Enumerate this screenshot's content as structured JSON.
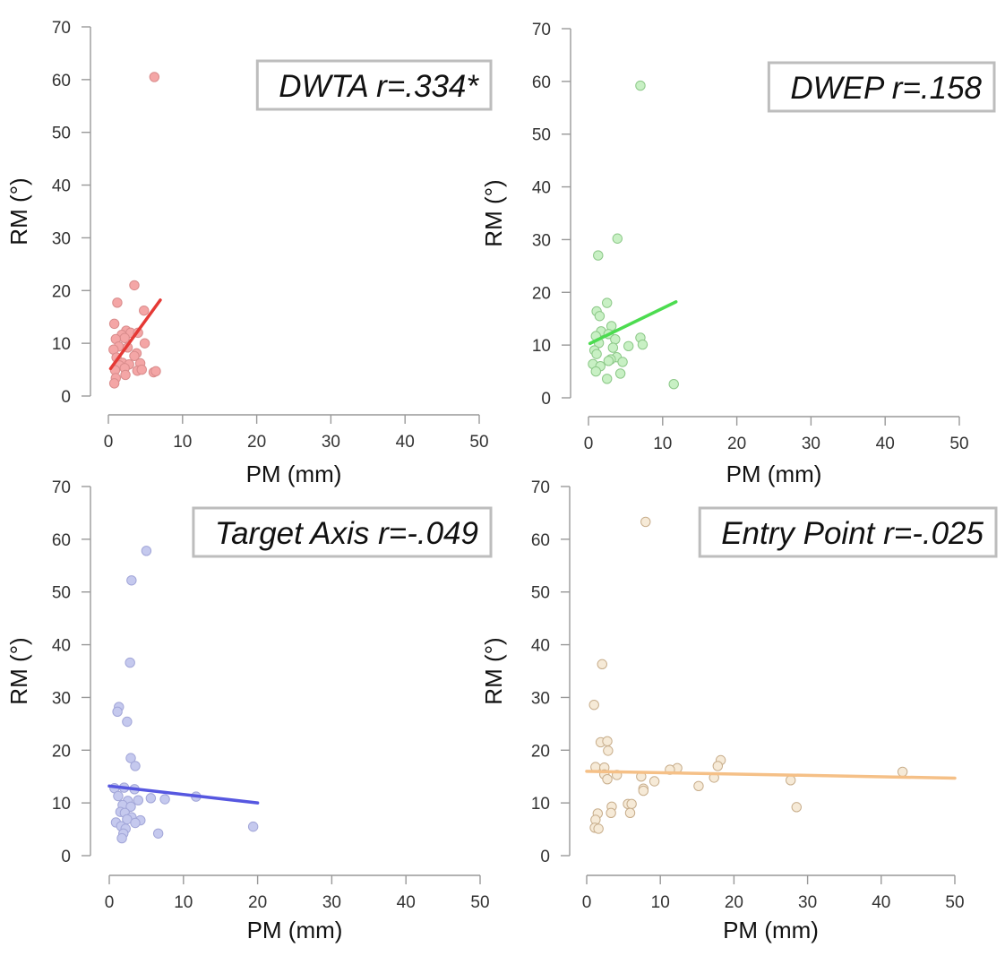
{
  "chart_data": [
    {
      "type": "scatter",
      "title": "",
      "xlabel": "PM (mm)",
      "ylabel": "RM (°)",
      "xlim": [
        0,
        50
      ],
      "ylim": [
        0,
        70
      ],
      "xticks": [
        "0",
        "10",
        "20",
        "30",
        "40",
        "50"
      ],
      "yticks": [
        "0",
        "10",
        "20",
        "30",
        "40",
        "50",
        "60",
        "70"
      ],
      "legend": "DWTA r=.334*",
      "legend_position": "top-right",
      "point_color": "#f4a6a6",
      "point_edge_color": "#d98c8c",
      "line_color": "#e53935",
      "points": [
        {
          "x": 6.2,
          "y": 60.5
        },
        {
          "x": 3.5,
          "y": 21.0
        },
        {
          "x": 1.2,
          "y": 17.7
        },
        {
          "x": 4.8,
          "y": 16.2
        },
        {
          "x": 0.8,
          "y": 13.7
        },
        {
          "x": 2.4,
          "y": 12.4
        },
        {
          "x": 3.0,
          "y": 12.0
        },
        {
          "x": 4.0,
          "y": 12.0
        },
        {
          "x": 1.8,
          "y": 11.6
        },
        {
          "x": 2.2,
          "y": 11.0
        },
        {
          "x": 1.0,
          "y": 10.8
        },
        {
          "x": 4.9,
          "y": 10.0
        },
        {
          "x": 1.4,
          "y": 9.4
        },
        {
          "x": 2.6,
          "y": 9.2
        },
        {
          "x": 0.7,
          "y": 8.8
        },
        {
          "x": 3.8,
          "y": 8.1
        },
        {
          "x": 3.5,
          "y": 7.6
        },
        {
          "x": 1.1,
          "y": 7.3
        },
        {
          "x": 1.9,
          "y": 6.3
        },
        {
          "x": 2.8,
          "y": 6.0
        },
        {
          "x": 4.3,
          "y": 6.2
        },
        {
          "x": 1.5,
          "y": 5.8
        },
        {
          "x": 2.2,
          "y": 5.3
        },
        {
          "x": 0.9,
          "y": 4.9
        },
        {
          "x": 3.9,
          "y": 4.8
        },
        {
          "x": 4.5,
          "y": 5.0
        },
        {
          "x": 6.1,
          "y": 4.5
        },
        {
          "x": 6.4,
          "y": 4.7
        },
        {
          "x": 2.3,
          "y": 4.0
        },
        {
          "x": 1.0,
          "y": 3.4
        },
        {
          "x": 0.8,
          "y": 2.4
        }
      ],
      "trend": {
        "x": [
          0.3,
          7.0
        ],
        "y": [
          5.2,
          18.2
        ]
      }
    },
    {
      "type": "scatter",
      "title": "",
      "xlabel": "PM (mm)",
      "ylabel": "RM (°)",
      "xlim": [
        0,
        50
      ],
      "ylim": [
        0,
        70
      ],
      "xticks": [
        "0",
        "10",
        "20",
        "30",
        "40",
        "50"
      ],
      "yticks": [
        "0",
        "10",
        "20",
        "30",
        "40",
        "50",
        "60",
        "70"
      ],
      "legend": "DWEP r=.158",
      "legend_position": "top-right",
      "point_color": "#c8f0c4",
      "point_edge_color": "#8cc888",
      "line_color": "#4cdc50",
      "points": [
        {
          "x": 7.0,
          "y": 59.2
        },
        {
          "x": 3.9,
          "y": 30.2
        },
        {
          "x": 1.3,
          "y": 27.0
        },
        {
          "x": 2.5,
          "y": 18.0
        },
        {
          "x": 1.1,
          "y": 16.4
        },
        {
          "x": 1.5,
          "y": 15.5
        },
        {
          "x": 3.1,
          "y": 13.6
        },
        {
          "x": 1.7,
          "y": 12.6
        },
        {
          "x": 2.7,
          "y": 12.1
        },
        {
          "x": 1.0,
          "y": 11.7
        },
        {
          "x": 7.0,
          "y": 11.4
        },
        {
          "x": 3.6,
          "y": 11.1
        },
        {
          "x": 1.4,
          "y": 10.4
        },
        {
          "x": 7.3,
          "y": 10.1
        },
        {
          "x": 5.4,
          "y": 9.8
        },
        {
          "x": 3.3,
          "y": 9.5
        },
        {
          "x": 0.8,
          "y": 9.0
        },
        {
          "x": 1.1,
          "y": 8.3
        },
        {
          "x": 3.8,
          "y": 7.7
        },
        {
          "x": 3.0,
          "y": 7.3
        },
        {
          "x": 2.7,
          "y": 7.0
        },
        {
          "x": 4.6,
          "y": 6.8
        },
        {
          "x": 0.6,
          "y": 6.4
        },
        {
          "x": 1.6,
          "y": 6.0
        },
        {
          "x": 1.0,
          "y": 5.0
        },
        {
          "x": 4.3,
          "y": 4.6
        },
        {
          "x": 2.5,
          "y": 3.6
        },
        {
          "x": 11.5,
          "y": 2.6
        }
      ],
      "trend": {
        "x": [
          0.2,
          11.8
        ],
        "y": [
          10.3,
          18.2
        ]
      }
    },
    {
      "type": "scatter",
      "title": "",
      "xlabel": "PM (mm)",
      "ylabel": "RM (°)",
      "xlim": [
        0,
        50
      ],
      "ylim": [
        0,
        70
      ],
      "xticks": [
        "0",
        "10",
        "20",
        "30",
        "40",
        "50"
      ],
      "yticks": [
        "0",
        "10",
        "20",
        "30",
        "40",
        "50",
        "60",
        "70"
      ],
      "legend": "Target Axis r=-.049",
      "legend_position": "top-right",
      "point_color": "#c5c9ee",
      "point_edge_color": "#a2a6d8",
      "line_color": "#5657e0",
      "points": [
        {
          "x": 5.0,
          "y": 57.8
        },
        {
          "x": 3.0,
          "y": 52.2
        },
        {
          "x": 2.8,
          "y": 36.6
        },
        {
          "x": 1.3,
          "y": 28.2
        },
        {
          "x": 1.1,
          "y": 27.3
        },
        {
          "x": 2.4,
          "y": 25.4
        },
        {
          "x": 2.9,
          "y": 18.5
        },
        {
          "x": 3.5,
          "y": 17.0
        },
        {
          "x": 0.7,
          "y": 12.8
        },
        {
          "x": 2.0,
          "y": 12.9
        },
        {
          "x": 3.4,
          "y": 12.6
        },
        {
          "x": 1.2,
          "y": 11.3
        },
        {
          "x": 11.7,
          "y": 11.2
        },
        {
          "x": 5.6,
          "y": 10.9
        },
        {
          "x": 7.5,
          "y": 10.7
        },
        {
          "x": 2.5,
          "y": 10.4
        },
        {
          "x": 3.9,
          "y": 10.5
        },
        {
          "x": 1.8,
          "y": 9.6
        },
        {
          "x": 2.9,
          "y": 9.3
        },
        {
          "x": 1.5,
          "y": 8.3
        },
        {
          "x": 2.1,
          "y": 8.1
        },
        {
          "x": 3.0,
          "y": 7.3
        },
        {
          "x": 2.4,
          "y": 6.9
        },
        {
          "x": 4.2,
          "y": 6.7
        },
        {
          "x": 0.9,
          "y": 6.3
        },
        {
          "x": 3.5,
          "y": 6.2
        },
        {
          "x": 1.6,
          "y": 5.6
        },
        {
          "x": 2.2,
          "y": 5.1
        },
        {
          "x": 19.4,
          "y": 5.5
        },
        {
          "x": 6.6,
          "y": 4.2
        },
        {
          "x": 1.9,
          "y": 4.2
        },
        {
          "x": 1.7,
          "y": 3.3
        }
      ],
      "trend": {
        "x": [
          0.0,
          20.0
        ],
        "y": [
          13.2,
          10.0
        ]
      }
    },
    {
      "type": "scatter",
      "title": "",
      "xlabel": "PM (mm)",
      "ylabel": "RM (°)",
      "xlim": [
        0,
        50
      ],
      "ylim": [
        0,
        70
      ],
      "xticks": [
        "0",
        "10",
        "20",
        "30",
        "40",
        "50"
      ],
      "yticks": [
        "0",
        "10",
        "20",
        "30",
        "40",
        "50",
        "60",
        "70"
      ],
      "legend": "Entry Point r=-.025",
      "legend_position": "top-right",
      "point_color": "#f6ead7",
      "point_edge_color": "#c8ae8c",
      "line_color": "#f5c087",
      "points": [
        {
          "x": 8.0,
          "y": 63.3
        },
        {
          "x": 2.1,
          "y": 36.3
        },
        {
          "x": 1.0,
          "y": 28.6
        },
        {
          "x": 1.9,
          "y": 21.5
        },
        {
          "x": 2.8,
          "y": 21.7
        },
        {
          "x": 2.9,
          "y": 19.9
        },
        {
          "x": 18.2,
          "y": 18.1
        },
        {
          "x": 17.8,
          "y": 17.0
        },
        {
          "x": 1.2,
          "y": 16.8
        },
        {
          "x": 12.3,
          "y": 16.6
        },
        {
          "x": 2.4,
          "y": 16.7
        },
        {
          "x": 11.3,
          "y": 16.3
        },
        {
          "x": 42.9,
          "y": 15.9
        },
        {
          "x": 2.4,
          "y": 15.4
        },
        {
          "x": 4.1,
          "y": 15.3
        },
        {
          "x": 7.4,
          "y": 15.0
        },
        {
          "x": 17.3,
          "y": 14.8
        },
        {
          "x": 2.8,
          "y": 14.5
        },
        {
          "x": 27.7,
          "y": 14.3
        },
        {
          "x": 9.2,
          "y": 14.1
        },
        {
          "x": 15.2,
          "y": 13.2
        },
        {
          "x": 7.7,
          "y": 12.7
        },
        {
          "x": 7.7,
          "y": 12.3
        },
        {
          "x": 5.6,
          "y": 9.8
        },
        {
          "x": 6.1,
          "y": 9.8
        },
        {
          "x": 3.4,
          "y": 9.3
        },
        {
          "x": 28.5,
          "y": 9.2
        },
        {
          "x": 1.5,
          "y": 8.0
        },
        {
          "x": 3.3,
          "y": 8.1
        },
        {
          "x": 5.9,
          "y": 8.1
        },
        {
          "x": 1.2,
          "y": 6.8
        },
        {
          "x": 1.1,
          "y": 5.3
        },
        {
          "x": 1.6,
          "y": 5.1
        }
      ],
      "trend": {
        "x": [
          0.0,
          50.0
        ],
        "y": [
          16.0,
          14.7
        ]
      }
    }
  ]
}
